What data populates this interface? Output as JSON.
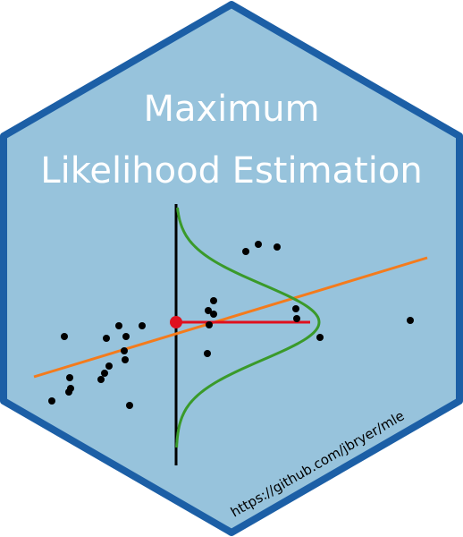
{
  "sticker": {
    "title_line1": "Maximum",
    "title_line2": "Likelihood Estimation",
    "url": "https://github.com/jbryer/mle"
  },
  "colors": {
    "hex_fill": "#97c3dc",
    "hex_border": "#1c5fa6",
    "title_text": "#ffffff",
    "regression_line": "#f47b1c",
    "normal_curve": "#3a9a2a",
    "residual_segment": "#e0101e",
    "point": "#000000",
    "axis": "#000000"
  },
  "icons": {
    "logo": "hex-sticker-icon"
  }
}
